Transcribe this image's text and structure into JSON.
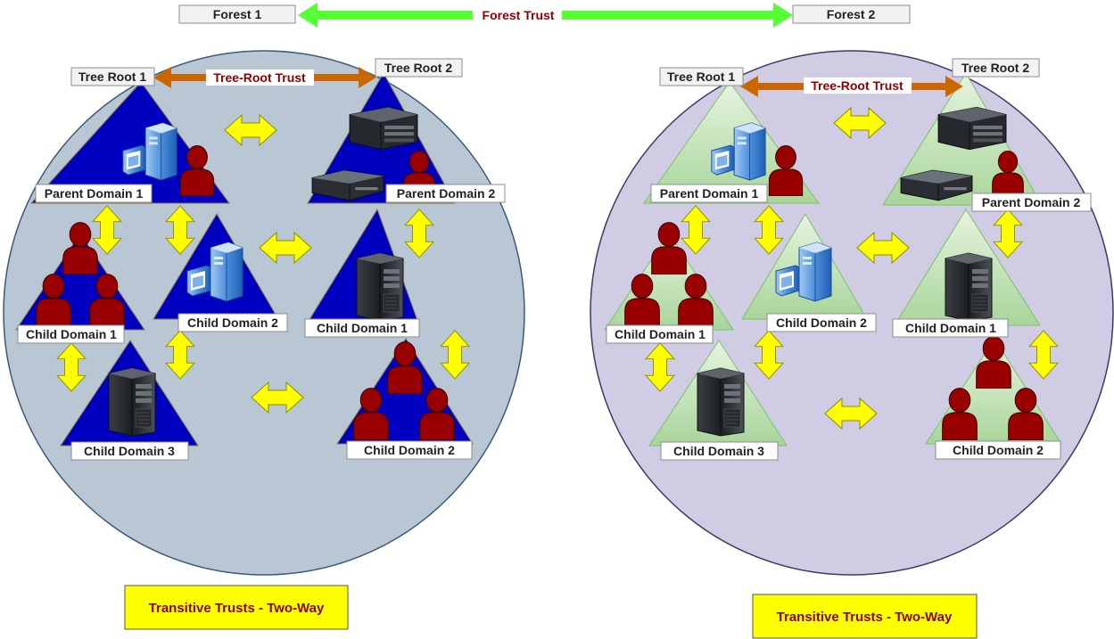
{
  "colors": {
    "forest1_circle": "#b8c7d3",
    "forest2_circle": "#cfcce3",
    "forest1_triangle": "#0000c0",
    "forest2_triangle": "#bfe2b4",
    "trust_arrow": "#ffff00",
    "forest_trust_arrow": "#55ff33",
    "tree_root_arrow": "#cc6600",
    "user": "#990000",
    "note_bg": "#ffff00",
    "note_text": "#8b0000"
  },
  "header": {
    "forest1": "Forest 1",
    "forest2": "Forest 2",
    "forest_trust": "Forest Trust"
  },
  "forests": [
    {
      "tree_root_1": "Tree Root 1",
      "tree_root_2": "Tree Root 2",
      "tree_root_trust": "Tree-Root Trust",
      "parent_domain_1": "Parent Domain 1",
      "parent_domain_2": "Parent Domain 2",
      "child_domain_1_left": "Child Domain 1",
      "child_domain_2_left": "Child Domain 2",
      "child_domain_3_left": "Child Domain 3",
      "child_domain_1_right": "Child Domain 1",
      "child_domain_2_right": "Child Domain 2",
      "note": "Transitive Trusts - Two-Way"
    },
    {
      "tree_root_1": "Tree Root 1",
      "tree_root_2": "Tree Root 2",
      "tree_root_trust": "Tree-Root Trust",
      "parent_domain_1": "Parent Domain 1",
      "parent_domain_2": "Parent Domain 2",
      "child_domain_1_left": "Child Domain 1",
      "child_domain_2_left": "Child Domain 2",
      "child_domain_3_left": "Child Domain 3",
      "child_domain_1_right": "Child Domain 1",
      "child_domain_2_right": "Child Domain 2",
      "note": "Transitive Trusts - Two-Way"
    }
  ]
}
